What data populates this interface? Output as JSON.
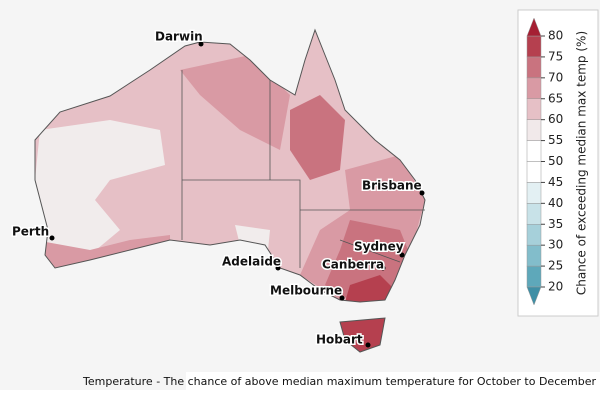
{
  "map": {
    "cities": [
      {
        "name": "Darwin"
      },
      {
        "name": "Perth"
      },
      {
        "name": "Brisbane"
      },
      {
        "name": "Adelaide"
      },
      {
        "name": "Sydney"
      },
      {
        "name": "Canberra"
      },
      {
        "name": "Melbourne"
      },
      {
        "name": "Hobart"
      }
    ],
    "legend": {
      "title": "Chance of exceeding median max temp (%)",
      "ticks": [
        20,
        25,
        30,
        35,
        40,
        45,
        50,
        55,
        60,
        65,
        70,
        75,
        80
      ],
      "colors": [
        "#5ea8ba",
        "#82bdcb",
        "#a6d0da",
        "#c8e2e8",
        "#e3f0f3",
        "#ffffff",
        "#ffffff",
        "#f1e9ea",
        "#e6c0c6",
        "#d99aa4",
        "#c9737f",
        "#b5404f"
      ],
      "under_color": "#3f8fa5",
      "over_color": "#a51f33"
    },
    "caption": "Temperature - The chance of above median maximum temperature for October to December"
  }
}
